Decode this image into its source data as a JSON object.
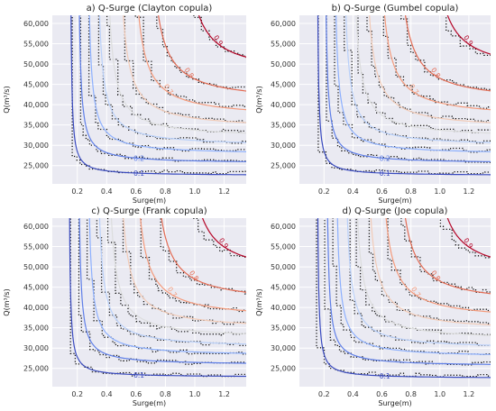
{
  "palette": {
    "plot_bg": "#eaeaf2",
    "grid": "#ffffff",
    "empirical_contour": "#111111",
    "level_colors": [
      "#3b4cc0",
      "#5f7fe8",
      "#8db0fe",
      "#b9d0f9",
      "#dcdddd",
      "#f2cbb7",
      "#f49a7b",
      "#e36b53",
      "#b40426"
    ]
  },
  "chart_data": [
    {
      "type": "contour",
      "title": "a) Q-Surge (Clayton copula)",
      "xlabel": "Surge(m)",
      "ylabel": "Q(m³/s)",
      "xlim": [
        0.03,
        1.35
      ],
      "ylim": [
        20500,
        62000
      ],
      "xticks": [
        "0.2",
        "0.4",
        "0.6",
        "0.8",
        "1.0",
        "1.2"
      ],
      "yticks": [
        "25,000",
        "30,000",
        "35,000",
        "40,000",
        "45,000",
        "50,000",
        "55,000",
        "60,000"
      ],
      "grid": true,
      "copula_levels": [
        {
          "level": 0.1,
          "label": "0.1",
          "x_asym": 0.15,
          "y_asym": 22500
        },
        {
          "level": 0.2,
          "label": "0.2",
          "x_asym": 0.2,
          "y_asym": 25500
        },
        {
          "level": 0.3,
          "label": "",
          "x_asym": 0.26,
          "y_asym": 27700
        },
        {
          "level": 0.4,
          "label": "",
          "x_asym": 0.32,
          "y_asym": 29700
        },
        {
          "level": 0.5,
          "label": "",
          "x_asym": 0.38,
          "y_asym": 31700
        },
        {
          "level": 0.6,
          "label": "",
          "x_asym": 0.46,
          "y_asym": 33900
        },
        {
          "level": 0.7,
          "label": "0.7",
          "x_asym": 0.55,
          "y_asym": 36600
        },
        {
          "level": 0.8,
          "label": "0.8",
          "x_asym": 0.66,
          "y_asym": 40500
        },
        {
          "level": 0.9,
          "label": "0.9",
          "x_asym": 0.88,
          "y_asym": 47000
        }
      ],
      "empirical_levels": [
        {
          "x_asym": 0.11,
          "y_asym": 23000
        },
        {
          "x_asym": 0.17,
          "y_asym": 25800
        },
        {
          "x_asym": 0.23,
          "y_asym": 28000
        },
        {
          "x_asym": 0.3,
          "y_asym": 30000
        },
        {
          "x_asym": 0.36,
          "y_asym": 32200
        },
        {
          "x_asym": 0.44,
          "y_asym": 34500
        },
        {
          "x_asym": 0.53,
          "y_asym": 37300
        },
        {
          "x_asym": 0.64,
          "y_asym": 41200
        },
        {
          "x_asym": 0.84,
          "y_asym": 48000
        }
      ]
    },
    {
      "type": "contour",
      "title": "b) Q-Surge (Gumbel copula)",
      "xlabel": "Surge(m)",
      "ylabel": "Q(m³/s)",
      "xlim": [
        0.03,
        1.35
      ],
      "ylim": [
        20500,
        62000
      ],
      "xticks": [
        "0.2",
        "0.4",
        "0.6",
        "0.8",
        "1.0",
        "1.2"
      ],
      "yticks": [
        "25,000",
        "30,000",
        "35,000",
        "40,000",
        "45,000",
        "50,000",
        "55,000",
        "60,000"
      ],
      "grid": true,
      "copula_levels": [
        {
          "level": 0.1,
          "label": "0.1",
          "x_asym": 0.15,
          "y_asym": 22500
        },
        {
          "level": 0.2,
          "label": "0.2",
          "x_asym": 0.2,
          "y_asym": 25500
        },
        {
          "level": 0.3,
          "label": "",
          "x_asym": 0.26,
          "y_asym": 27700
        },
        {
          "level": 0.4,
          "label": "",
          "x_asym": 0.32,
          "y_asym": 29700
        },
        {
          "level": 0.5,
          "label": "",
          "x_asym": 0.38,
          "y_asym": 31700
        },
        {
          "level": 0.6,
          "label": "",
          "x_asym": 0.46,
          "y_asym": 33900
        },
        {
          "level": 0.7,
          "label": "0.7",
          "x_asym": 0.55,
          "y_asym": 36600
        },
        {
          "level": 0.8,
          "label": "0.8",
          "x_asym": 0.67,
          "y_asym": 40500
        },
        {
          "level": 0.9,
          "label": "0.9",
          "x_asym": 0.9,
          "y_asym": 47500
        }
      ],
      "empirical_levels": [
        {
          "x_asym": 0.11,
          "y_asym": 23000
        },
        {
          "x_asym": 0.17,
          "y_asym": 25800
        },
        {
          "x_asym": 0.23,
          "y_asym": 28000
        },
        {
          "x_asym": 0.3,
          "y_asym": 30000
        },
        {
          "x_asym": 0.36,
          "y_asym": 32200
        },
        {
          "x_asym": 0.44,
          "y_asym": 34500
        },
        {
          "x_asym": 0.53,
          "y_asym": 37300
        },
        {
          "x_asym": 0.64,
          "y_asym": 41200
        },
        {
          "x_asym": 0.84,
          "y_asym": 48000
        }
      ]
    },
    {
      "type": "contour",
      "title": "c) Q-Surge (Frank copula)",
      "xlabel": "Surge(m)",
      "ylabel": "Q(m³/s)",
      "xlim": [
        0.03,
        1.35
      ],
      "ylim": [
        20500,
        62000
      ],
      "xticks": [
        "0.2",
        "0.4",
        "0.6",
        "0.8",
        "1.0",
        "1.2"
      ],
      "yticks": [
        "25,000",
        "30,000",
        "35,000",
        "40,000",
        "45,000",
        "50,000",
        "55,000",
        "60,000"
      ],
      "grid": true,
      "copula_levels": [
        {
          "level": 0.1,
          "label": "0.1",
          "x_asym": 0.14,
          "y_asym": 22800
        },
        {
          "level": 0.2,
          "label": "",
          "x_asym": 0.2,
          "y_asym": 25800
        },
        {
          "level": 0.3,
          "label": "",
          "x_asym": 0.26,
          "y_asym": 28000
        },
        {
          "level": 0.4,
          "label": "",
          "x_asym": 0.32,
          "y_asym": 30000
        },
        {
          "level": 0.5,
          "label": "",
          "x_asym": 0.39,
          "y_asym": 32200
        },
        {
          "level": 0.6,
          "label": "",
          "x_asym": 0.46,
          "y_asym": 34400
        },
        {
          "level": 0.7,
          "label": "0.7",
          "x_asym": 0.56,
          "y_asym": 37000
        },
        {
          "level": 0.8,
          "label": "0.8",
          "x_asym": 0.68,
          "y_asym": 40800
        },
        {
          "level": 0.9,
          "label": "0.9",
          "x_asym": 0.9,
          "y_asym": 47500
        }
      ],
      "empirical_levels": [
        {
          "x_asym": 0.11,
          "y_asym": 23000
        },
        {
          "x_asym": 0.17,
          "y_asym": 25800
        },
        {
          "x_asym": 0.23,
          "y_asym": 28000
        },
        {
          "x_asym": 0.3,
          "y_asym": 30000
        },
        {
          "x_asym": 0.36,
          "y_asym": 32200
        },
        {
          "x_asym": 0.44,
          "y_asym": 34500
        },
        {
          "x_asym": 0.53,
          "y_asym": 37300
        },
        {
          "x_asym": 0.64,
          "y_asym": 41200
        },
        {
          "x_asym": 0.84,
          "y_asym": 48000
        }
      ]
    },
    {
      "type": "contour",
      "title": "d) Q-Surge (Joe copula)",
      "xlabel": "Surge(m)",
      "ylabel": "Q(m³/s)",
      "xlim": [
        0.03,
        1.35
      ],
      "ylim": [
        20500,
        62000
      ],
      "xticks": [
        "0.2",
        "0.4",
        "0.6",
        "0.8",
        "1.0",
        "1.2"
      ],
      "yticks": [
        "25,000",
        "30,000",
        "35,000",
        "40,000",
        "45,000",
        "50,000",
        "55,000",
        "60,000"
      ],
      "grid": true,
      "copula_levels": [
        {
          "level": 0.1,
          "label": "0.1",
          "x_asym": 0.15,
          "y_asym": 22500
        },
        {
          "level": 0.2,
          "label": "",
          "x_asym": 0.21,
          "y_asym": 25500
        },
        {
          "level": 0.3,
          "label": "",
          "x_asym": 0.27,
          "y_asym": 27700
        },
        {
          "level": 0.4,
          "label": "",
          "x_asym": 0.33,
          "y_asym": 29700
        },
        {
          "level": 0.5,
          "label": "",
          "x_asym": 0.39,
          "y_asym": 31800
        },
        {
          "level": 0.6,
          "label": "",
          "x_asym": 0.47,
          "y_asym": 34000
        },
        {
          "level": 0.7,
          "label": "0.7",
          "x_asym": 0.56,
          "y_asym": 36700
        },
        {
          "level": 0.8,
          "label": "0.8",
          "x_asym": 0.67,
          "y_asym": 40500
        },
        {
          "level": 0.9,
          "label": "0.9",
          "x_asym": 0.9,
          "y_asym": 47500
        }
      ],
      "empirical_levels": [
        {
          "x_asym": 0.11,
          "y_asym": 23000
        },
        {
          "x_asym": 0.17,
          "y_asym": 25800
        },
        {
          "x_asym": 0.23,
          "y_asym": 28000
        },
        {
          "x_asym": 0.3,
          "y_asym": 30000
        },
        {
          "x_asym": 0.36,
          "y_asym": 32200
        },
        {
          "x_asym": 0.44,
          "y_asym": 34500
        },
        {
          "x_asym": 0.53,
          "y_asym": 37300
        },
        {
          "x_asym": 0.64,
          "y_asym": 41200
        },
        {
          "x_asym": 0.84,
          "y_asym": 48000
        }
      ]
    }
  ]
}
